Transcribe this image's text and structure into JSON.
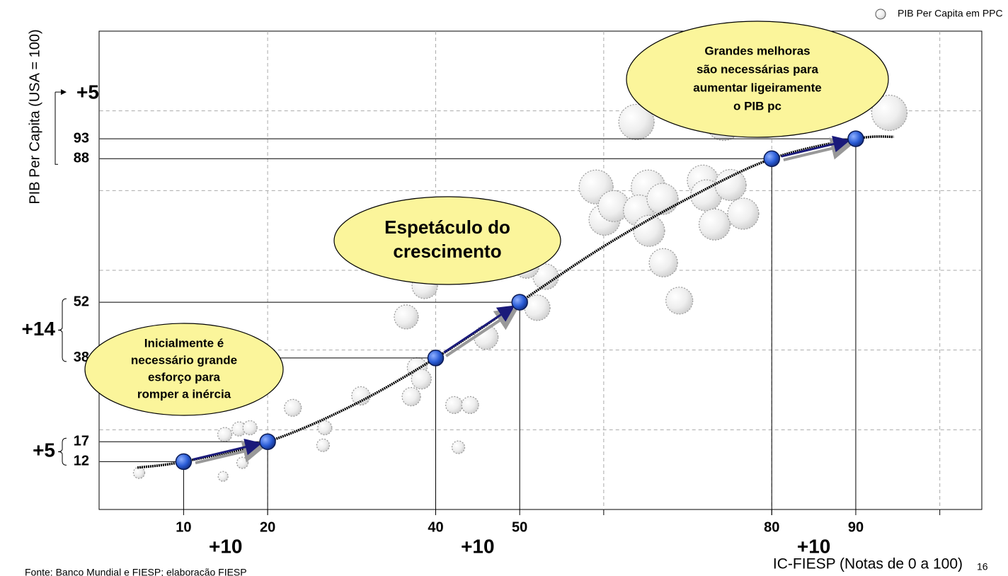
{
  "chart_data": {
    "type": "scatter",
    "x_label": "IC-FIESP (Notas de 0 a 100)",
    "y_label": "PIB Per Capita (USA = 100)",
    "series": [
      {
        "name": "PIB Per Capita em PPC",
        "color": "#d9d9d9",
        "x": [
          4.7,
          14.7,
          14.9,
          16.6,
          17.9,
          17.0,
          26.8,
          26.6,
          23.0,
          31.1,
          36.5,
          38.7,
          37.8,
          38.3,
          37.1,
          42.2,
          44.1,
          42.7,
          46.0,
          52.1,
          53.1,
          50.8,
          59.1,
          60.1,
          61.2,
          63.9,
          65.3,
          64.2,
          65.4,
          67.0,
          67.1,
          69.0,
          71.8,
          72.2,
          73.2,
          75.1,
          76.6,
          74.3,
          94.0
        ],
        "values": [
          9.2,
          8.3,
          18.8,
          20.2,
          20.5,
          11.7,
          20.5,
          16.1,
          25.5,
          28.5,
          48.3,
          56.1,
          35.6,
          32.7,
          28.3,
          26.2,
          26.2,
          15.6,
          43.2,
          50.6,
          58.4,
          61.2,
          80.9,
          72.7,
          76.1,
          97.2,
          80.9,
          75.0,
          69.9,
          77.9,
          61.9,
          52.4,
          82.5,
          78.8,
          71.5,
          81.4,
          74.2,
          97.0,
          99.5
        ],
        "sizes": [
          8,
          7,
          10,
          10,
          10,
          8,
          10,
          9,
          12,
          13,
          17,
          18,
          14,
          14,
          13,
          12,
          12,
          9,
          17,
          18,
          18,
          18,
          24,
          22,
          22,
          25,
          24,
          22,
          22,
          22,
          20,
          19,
          22,
          22,
          22,
          22,
          22,
          25,
          25
        ]
      }
    ],
    "highlights": {
      "color": "#2a5cd6",
      "x": [
        10,
        20,
        40,
        50,
        80,
        90
      ],
      "y": [
        12,
        17,
        38,
        52,
        88,
        93
      ]
    },
    "curve": {
      "x": [
        4.5,
        10,
        20,
        30,
        40,
        50,
        60,
        70,
        80,
        90,
        94.5
      ],
      "y": [
        10.5,
        12,
        17,
        26,
        38,
        52,
        66,
        78,
        88,
        93,
        93.5
      ]
    },
    "xlim": [
      0,
      105
    ],
    "ylim": [
      0,
      120
    ],
    "xticks": [
      20,
      40,
      60,
      80,
      100
    ],
    "yticks": [
      20,
      40,
      60,
      80,
      100
    ],
    "grid": true,
    "y_deltas": [
      "+5",
      "+14",
      "+5"
    ],
    "x_deltas": [
      "+10",
      "+10",
      "+10"
    ],
    "callouts": [
      {
        "lines": [
          "Inicialmente é",
          "necessário grande",
          "esforço para",
          "romper a inércia"
        ]
      },
      {
        "lines": [
          "Espetáculo do",
          "crescimento"
        ]
      },
      {
        "lines": [
          "Grandes melhoras",
          "são necessárias para",
          "aumentar ligeiramente",
          "o PIB pc"
        ]
      }
    ],
    "source": "Fonte: Banco Mundial e FIESP; elaboração FIESP",
    "page_number": "16"
  }
}
